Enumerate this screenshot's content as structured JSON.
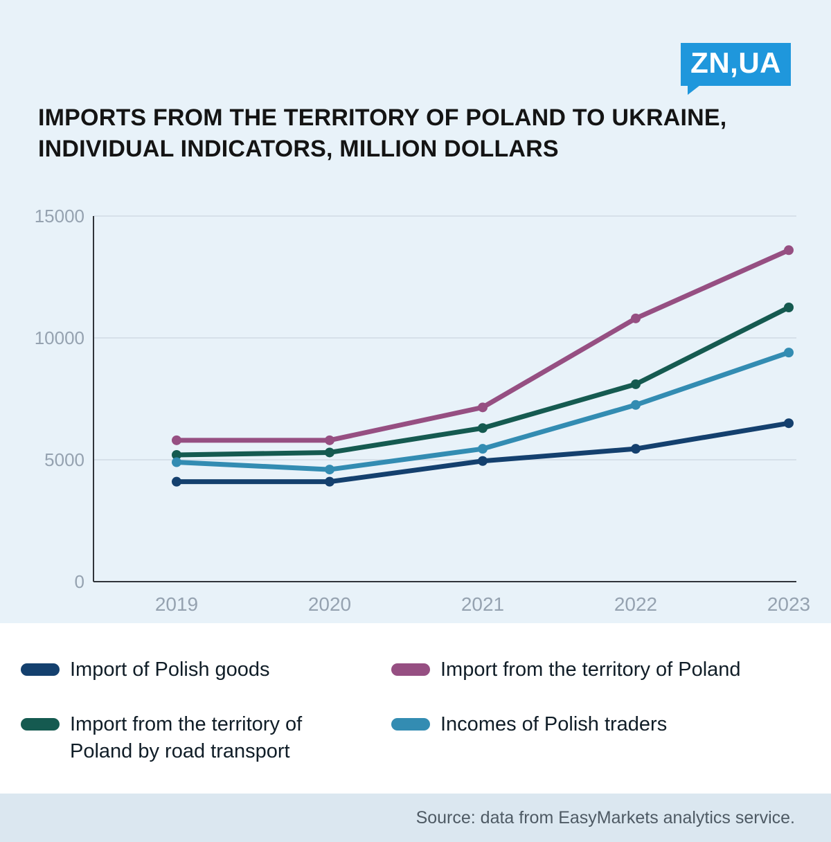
{
  "logo": {
    "text": "ZN,UA",
    "bg": "#1f97dc"
  },
  "title": "IMPORTS FROM THE TERRITORY OF POLAND TO UKRAINE, INDIVIDUAL INDICATORS, MILLION DOLLARS",
  "chart_data": {
    "type": "line",
    "x": [
      "2019",
      "2020",
      "2021",
      "2022",
      "2023"
    ],
    "series": [
      {
        "name": "Import of Polish goods",
        "color": "#14406e",
        "values": [
          4100,
          4100,
          4950,
          5450,
          6500
        ]
      },
      {
        "name": "Import from the territory of Poland",
        "color": "#964f82",
        "values": [
          5800,
          5800,
          7150,
          10800,
          13600
        ]
      },
      {
        "name": "Import from the territory of Poland by road transport",
        "color": "#155a50",
        "values": [
          5200,
          5300,
          6300,
          8100,
          11250
        ]
      },
      {
        "name": "Incomes of Polish traders",
        "color": "#338cb2",
        "values": [
          4900,
          4600,
          5450,
          7250,
          9400
        ]
      }
    ],
    "ylim": [
      0,
      15000
    ],
    "yticks": [
      0,
      5000,
      10000,
      15000
    ],
    "grid": true,
    "legend_position": "bottom",
    "title": "IMPORTS FROM THE TERRITORY OF POLAND TO UKRAINE, INDIVIDUAL INDICATORS, MILLION DOLLARS",
    "xlabel": "",
    "ylabel": ""
  },
  "source": "Source: data from EasyMarkets analytics service."
}
